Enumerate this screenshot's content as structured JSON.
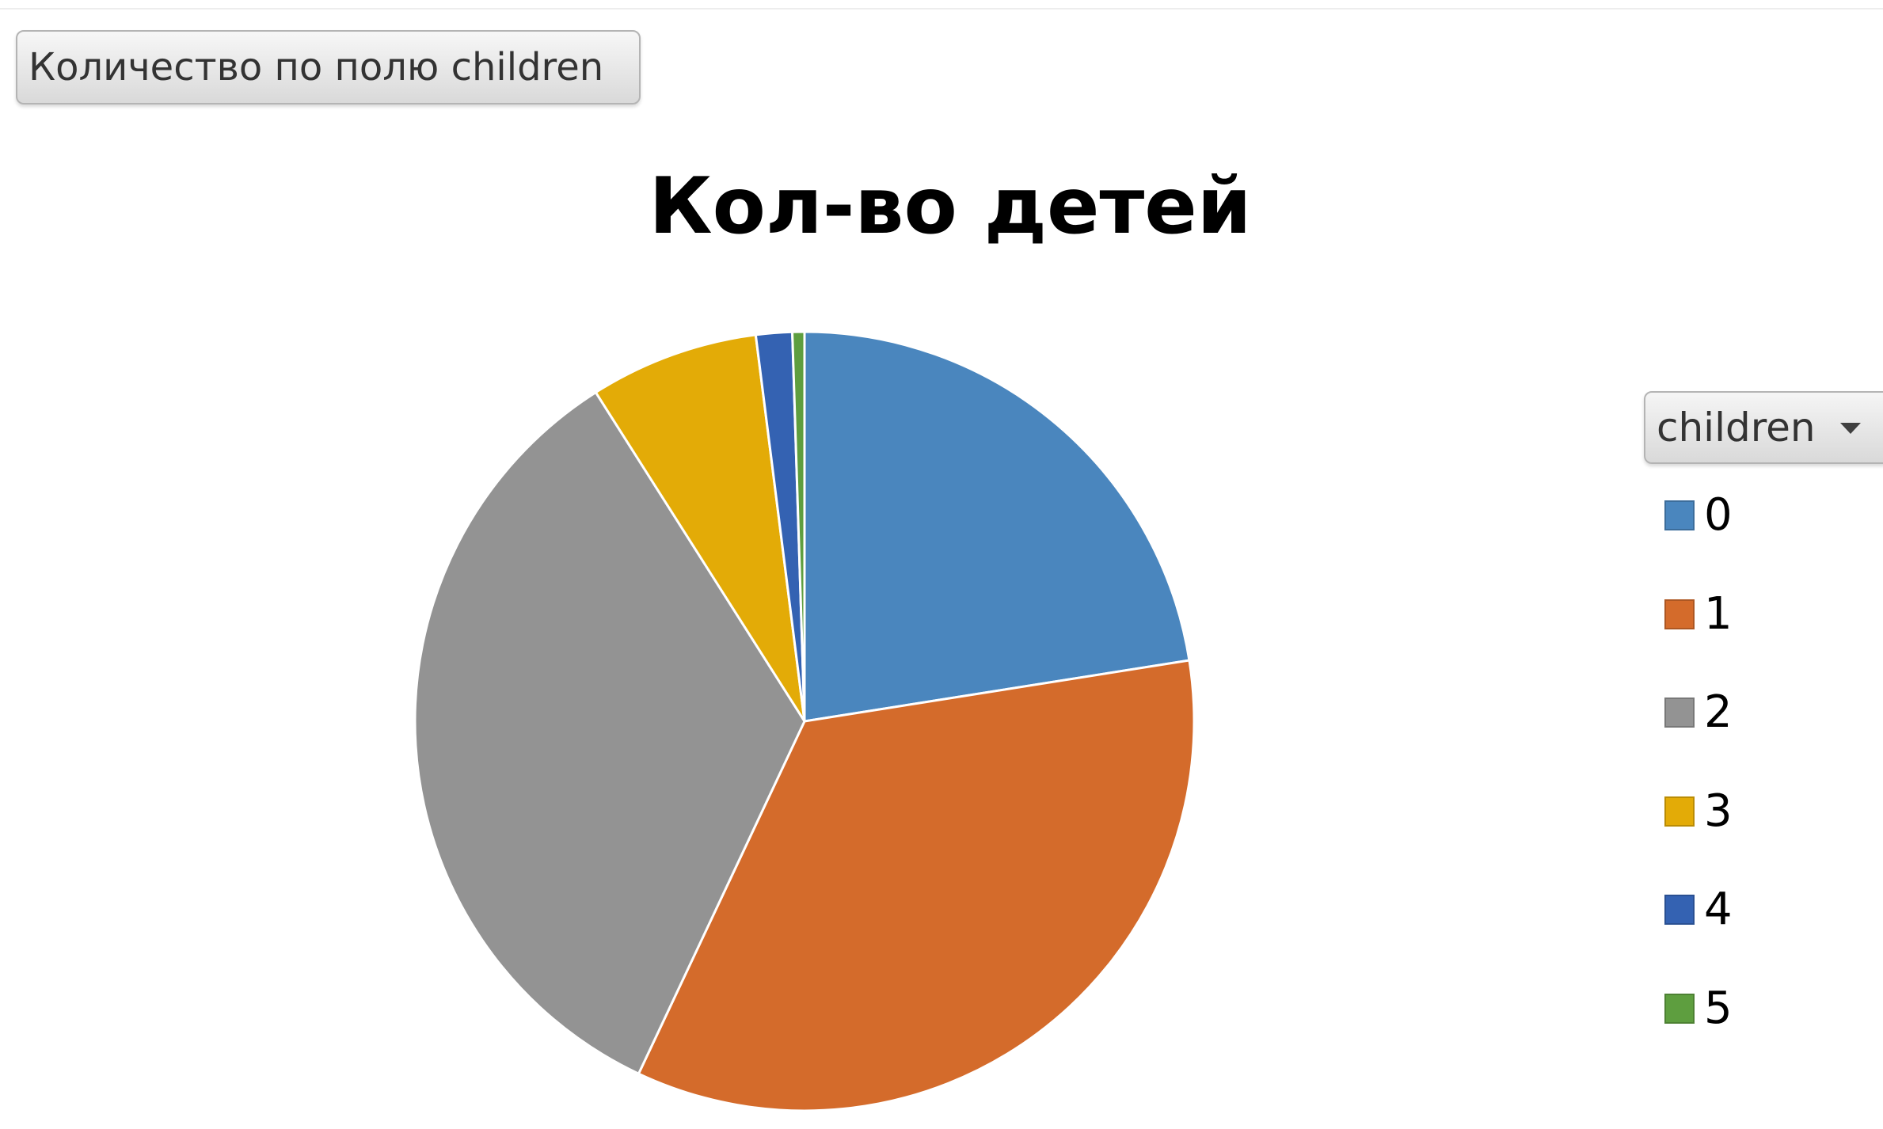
{
  "field_button": {
    "label": "Количество по полю children"
  },
  "chart_data": {
    "type": "pie",
    "title": "Кол-во детей",
    "legend_title": "children",
    "legend_position": "right",
    "categories": [
      "0",
      "1",
      "2",
      "3",
      "4",
      "5"
    ],
    "values": [
      22.5,
      34.5,
      34.0,
      7.0,
      1.5,
      0.5
    ],
    "colors": [
      "#4a86be",
      "#d46b2b",
      "#939393",
      "#e3ab07",
      "#3462b2",
      "#5e9e3f"
    ]
  }
}
